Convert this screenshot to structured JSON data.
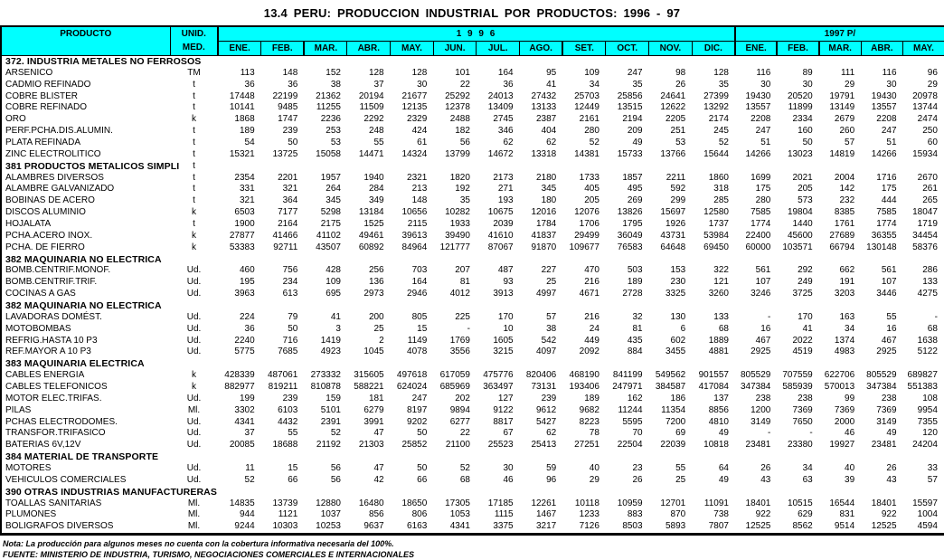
{
  "title": "13.4  PERU:  PRODUCCION  INDUSTRIAL  POR  PRODUCTOS:  1996 - 97",
  "colors": {
    "header_bg": "#00ffff",
    "border": "#000000",
    "text": "#000000"
  },
  "header": {
    "producto": "PRODUCTO",
    "unidad_line1": "UNID.",
    "unidad_line2": "MED.",
    "group_1996": "1 9 9 6",
    "group_1997": "1997 P/",
    "months_1996": [
      "ENE.",
      "FEB.",
      "MAR.",
      "ABR.",
      "MAY.",
      "JUN.",
      "JUL.",
      "AGO.",
      "SET.",
      "OCT.",
      "NOV.",
      "DIC."
    ],
    "months_1997": [
      "ENE.",
      "FEB.",
      "MAR.",
      "ABR.",
      "MAY."
    ]
  },
  "sections": [
    {
      "label": "372. INDUSTRIA METALES NO FERROSOS",
      "unit": "",
      "rows": [
        {
          "name": "ARSENICO",
          "unit": "TM",
          "values": [
            113,
            148,
            152,
            128,
            128,
            101,
            164,
            95,
            109,
            247,
            98,
            128,
            116,
            89,
            111,
            116,
            96
          ]
        },
        {
          "name": "CADMIO REFINADO",
          "unit": "t",
          "values": [
            36,
            36,
            38,
            37,
            30,
            22,
            36,
            41,
            34,
            35,
            26,
            35,
            30,
            30,
            29,
            30,
            29
          ]
        },
        {
          "name": "COBRE BLISTER",
          "unit": "t",
          "values": [
            17448,
            22199,
            21362,
            20194,
            21677,
            25292,
            24013,
            27432,
            25703,
            25856,
            24641,
            27399,
            19430,
            20520,
            19791,
            19430,
            20978
          ]
        },
        {
          "name": "COBRE REFINADO",
          "unit": "t",
          "values": [
            10141,
            9485,
            11255,
            11509,
            12135,
            12378,
            13409,
            13133,
            12449,
            13515,
            12622,
            13292,
            13557,
            11899,
            13149,
            13557,
            13744
          ]
        },
        {
          "name": "ORO",
          "unit": "k",
          "values": [
            1868,
            1747,
            2236,
            2292,
            2329,
            2488,
            2745,
            2387,
            2161,
            2194,
            2205,
            2174,
            2208,
            2334,
            2679,
            2208,
            2474
          ]
        },
        {
          "name": "PERF.PCHA.DIS.ALUMIN.",
          "unit": "t",
          "values": [
            189,
            239,
            253,
            248,
            424,
            182,
            346,
            404,
            280,
            209,
            251,
            245,
            247,
            160,
            260,
            247,
            250
          ]
        },
        {
          "name": "PLATA REFINADA",
          "unit": "t",
          "values": [
            54,
            50,
            53,
            55,
            61,
            56,
            62,
            62,
            52,
            49,
            53,
            52,
            51,
            50,
            57,
            51,
            60
          ]
        },
        {
          "name": "ZINC ELECTROLITICO",
          "unit": "t",
          "values": [
            15321,
            13725,
            15058,
            14471,
            14324,
            13799,
            14672,
            13318,
            14381,
            15733,
            13766,
            15644,
            14266,
            13023,
            14819,
            14266,
            15934
          ]
        }
      ]
    },
    {
      "label": "381 PRODUCTOS METALICOS SIMPLI",
      "unit": "t",
      "rows": [
        {
          "name": "ALAMBRES DIVERSOS",
          "unit": "t",
          "values": [
            2354,
            2201,
            1957,
            1940,
            2321,
            1820,
            2173,
            2180,
            1733,
            1857,
            2211,
            1860,
            1699,
            2021,
            2004,
            1716,
            2670
          ]
        },
        {
          "name": "ALAMBRE GALVANIZADO",
          "unit": "t",
          "values": [
            331,
            321,
            264,
            284,
            213,
            192,
            271,
            345,
            405,
            495,
            592,
            318,
            175,
            205,
            142,
            175,
            261
          ]
        },
        {
          "name": "BOBINAS DE ACERO",
          "unit": "t",
          "values": [
            321,
            364,
            345,
            349,
            148,
            35,
            193,
            180,
            205,
            269,
            299,
            285,
            280,
            573,
            232,
            444,
            265
          ]
        },
        {
          "name": "DISCOS ALUMINIO",
          "unit": "k",
          "values": [
            6503,
            7177,
            5298,
            13184,
            10656,
            10282,
            10675,
            12016,
            12076,
            13826,
            15697,
            12580,
            7585,
            19804,
            8385,
            7585,
            18047
          ]
        },
        {
          "name": "HOJALATA",
          "unit": "t",
          "values": [
            1900,
            2164,
            2175,
            1525,
            2115,
            1933,
            2039,
            1784,
            1706,
            1795,
            1926,
            1737,
            1774,
            1440,
            1761,
            1774,
            1719
          ]
        },
        {
          "name": "PCHA.ACERO INOX.",
          "unit": "k",
          "values": [
            27877,
            41466,
            41102,
            49461,
            39613,
            39490,
            41610,
            41837,
            29499,
            36049,
            43731,
            53984,
            22400,
            45600,
            27689,
            36355,
            34454
          ]
        },
        {
          "name": "PCHA. DE FIERRO",
          "unit": "k",
          "values": [
            53383,
            92711,
            43507,
            60892,
            84964,
            121777,
            87067,
            91870,
            109677,
            76583,
            64648,
            69450,
            60000,
            103571,
            66794,
            130148,
            58376
          ]
        }
      ]
    },
    {
      "label": "382 MAQUINARIA NO ELECTRICA",
      "unit": "",
      "rows": [
        {
          "name": "BOMB.CENTRIF.MONOF.",
          "unit": "Ud.",
          "values": [
            460,
            756,
            428,
            256,
            703,
            207,
            487,
            227,
            470,
            503,
            153,
            322,
            561,
            292,
            662,
            561,
            286
          ]
        },
        {
          "name": "BOMB.CENTRIF.TRIF.",
          "unit": "Ud.",
          "values": [
            195,
            234,
            109,
            136,
            164,
            81,
            93,
            25,
            216,
            189,
            230,
            121,
            107,
            249,
            191,
            107,
            133
          ]
        },
        {
          "name": "COCINAS A GAS",
          "unit": "Ud.",
          "values": [
            3963,
            613,
            695,
            2973,
            2946,
            4012,
            3913,
            4997,
            4671,
            2728,
            3325,
            3260,
            3246,
            3725,
            3203,
            3446,
            4275
          ]
        }
      ]
    },
    {
      "label": "382 MAQUINARIA NO ELECTRICA",
      "unit": "",
      "rows": [
        {
          "name": "LAVADORAS DOMÉST.",
          "unit": "Ud.",
          "values": [
            224,
            79,
            41,
            200,
            805,
            225,
            170,
            57,
            216,
            32,
            130,
            133,
            "-",
            170,
            163,
            55,
            "-"
          ]
        },
        {
          "name": "MOTOBOMBAS",
          "unit": "Ud.",
          "values": [
            36,
            50,
            3,
            25,
            15,
            "-",
            10,
            38,
            24,
            81,
            6,
            68,
            16,
            41,
            34,
            16,
            68
          ]
        },
        {
          "name": "REFRIG.HASTA 10 P3",
          "unit": "Ud.",
          "values": [
            2240,
            716,
            1419,
            2,
            1149,
            1769,
            1605,
            542,
            449,
            435,
            602,
            1889,
            467,
            2022,
            1374,
            467,
            1638
          ]
        },
        {
          "name": "REF.MAYOR A 10 P3",
          "unit": "Ud.",
          "values": [
            5775,
            7685,
            4923,
            1045,
            4078,
            3556,
            3215,
            4097,
            2092,
            884,
            3455,
            4881,
            2925,
            4519,
            4983,
            2925,
            5122
          ]
        }
      ]
    },
    {
      "label": "383 MAQUINARIA ELECTRICA",
      "unit": "",
      "rows": [
        {
          "name": "CABLES ENERGIA",
          "unit": "k",
          "values": [
            428339,
            487061,
            273332,
            315605,
            497618,
            617059,
            475776,
            820406,
            468190,
            841199,
            549562,
            901557,
            805529,
            707559,
            622706,
            805529,
            689827
          ]
        },
        {
          "name": "CABLES TELEFONICOS",
          "unit": "k",
          "values": [
            882977,
            819211,
            810878,
            588221,
            624024,
            685969,
            363497,
            73131,
            193406,
            247971,
            384587,
            417084,
            347384,
            585939,
            570013,
            347384,
            551383
          ]
        },
        {
          "name": "MOTOR ELEC.TRIFAS.",
          "unit": "Ud.",
          "values": [
            199,
            239,
            159,
            181,
            247,
            202,
            127,
            239,
            189,
            162,
            186,
            137,
            238,
            238,
            99,
            238,
            108
          ]
        },
        {
          "name": "PILAS",
          "unit": "Ml.",
          "values": [
            3302,
            6103,
            5101,
            6279,
            8197,
            9894,
            9122,
            9612,
            9682,
            11244,
            11354,
            8856,
            1200,
            7369,
            7369,
            7369,
            9954
          ]
        },
        {
          "name": "PCHAS ELECTRODOMES.",
          "unit": "Ud.",
          "values": [
            4341,
            4432,
            2391,
            3991,
            9202,
            6277,
            8817,
            5427,
            8223,
            5595,
            7200,
            4810,
            3149,
            7650,
            2000,
            3149,
            7355
          ]
        },
        {
          "name": "TRANSFOR.TRIFASICO",
          "unit": "Ud.",
          "values": [
            37,
            55,
            52,
            47,
            50,
            22,
            67,
            62,
            78,
            70,
            69,
            49,
            "-",
            "-",
            46,
            49,
            120
          ]
        },
        {
          "name": "BATERIAS 6V,12V",
          "unit": "Ud.",
          "values": [
            20085,
            18688,
            21192,
            21303,
            25852,
            21100,
            25523,
            25413,
            27251,
            22504,
            22039,
            10818,
            23481,
            23380,
            19927,
            23481,
            24204
          ]
        }
      ]
    },
    {
      "label": "384 MATERIAL DE TRANSPORTE",
      "unit": "",
      "rows": [
        {
          "name": "MOTORES",
          "unit": "Ud.",
          "values": [
            11,
            15,
            56,
            47,
            50,
            52,
            30,
            59,
            40,
            23,
            55,
            64,
            26,
            34,
            40,
            26,
            33
          ]
        },
        {
          "name": "VEHICULOS COMERCIALES",
          "unit": "Ud.",
          "values": [
            52,
            66,
            56,
            42,
            66,
            68,
            46,
            96,
            29,
            26,
            25,
            49,
            43,
            63,
            39,
            43,
            57
          ]
        }
      ]
    },
    {
      "label": "390 OTRAS INDUSTRIAS MANUFACTURERAS",
      "unit": "",
      "rows": [
        {
          "name": "TOALLAS SANITARIAS",
          "unit": "Ml.",
          "values": [
            14835,
            13739,
            12880,
            16480,
            18650,
            17305,
            17185,
            12261,
            10118,
            10959,
            12701,
            11091,
            18401,
            10515,
            16544,
            18401,
            15597
          ]
        },
        {
          "name": "PLUMONES",
          "unit": "Ml.",
          "values": [
            944,
            1121,
            1037,
            856,
            806,
            1053,
            1115,
            1467,
            1233,
            883,
            870,
            738,
            922,
            629,
            831,
            922,
            1004
          ]
        },
        {
          "name": "BOLIGRAFOS DIVERSOS",
          "unit": "Ml.",
          "values": [
            9244,
            10303,
            10253,
            9637,
            6163,
            4341,
            3375,
            3217,
            7126,
            8503,
            5893,
            7807,
            12525,
            8562,
            9514,
            12525,
            4594
          ]
        }
      ]
    }
  ],
  "footer": {
    "nota": "Nota:  La producción para algunos meses no cuenta con la cobertura informativa necesaria del 100%.",
    "fuente": "FUENTE: MINISTERIO DE INDUSTRIA, TURISMO, NEGOCIACIONES COMERCIALES E INTERNACIONALES"
  }
}
